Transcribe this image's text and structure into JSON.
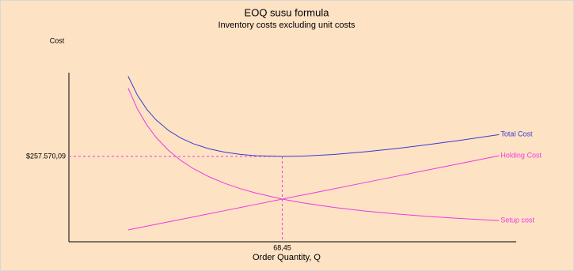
{
  "chart_data": {
    "type": "line",
    "title": "EOQ susu formula",
    "subtitle": "Inventory costs excluding unit costs",
    "y_label": "Cost",
    "x_label": "Order Quantity, Q",
    "x": [
      19,
      22,
      25,
      28,
      32,
      36,
      40,
      45,
      50,
      55,
      60,
      68.45,
      75,
      85,
      95,
      105,
      115,
      125,
      138
    ],
    "series": [
      {
        "name": "Total Cost",
        "color": "#3a3ad0",
        "values": [
          499712,
          442088,
          399648,
          367512,
          335684,
          312600,
          295639,
          280559,
          270377,
          263756,
          259806,
          257570.09,
          258643,
          263629,
          271526,
          281503,
          293016,
          305698,
          323512
        ]
      },
      {
        "name": "Holding Cost",
        "color": "#ee3adf",
        "values": [
          35747,
          41391,
          47035,
          52679,
          60205,
          67730,
          75256,
          84663,
          94070,
          103477,
          112884,
          128785.04,
          141105,
          159919,
          178733,
          197547,
          216361,
          235175,
          259633
        ]
      },
      {
        "name": "Setup cost",
        "color": "#ee3adf",
        "values": [
          463965,
          400697,
          352613,
          314833,
          275479,
          244870,
          220383,
          195896,
          176307,
          160279,
          146922,
          128785.05,
          117538,
          103710,
          92793,
          83956,
          76655,
          70523,
          63879
        ]
      }
    ],
    "xlim": [
      0,
      145
    ],
    "ylim": [
      0,
      520000
    ],
    "ref_y": {
      "value": 257570.09,
      "label": "$257.570,09"
    },
    "ref_x": {
      "value": 68.45,
      "label": "68,45"
    },
    "ref_color": "#ee3adf"
  }
}
